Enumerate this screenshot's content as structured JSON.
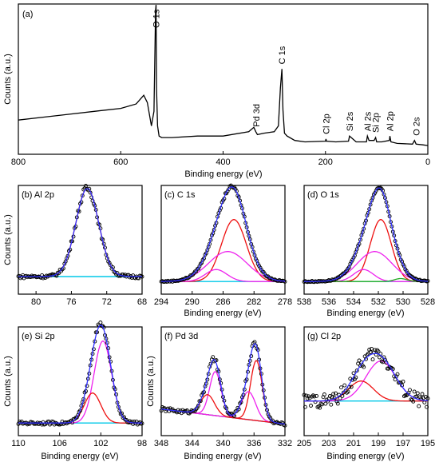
{
  "colors": {
    "data": "#000000",
    "envelope": "#3030ff",
    "baseline": "#00c8e8",
    "red": "#ee1111",
    "magenta": "#ee22ee",
    "green": "#22aa22"
  },
  "chart_data": [
    {
      "panel": "(a)",
      "type": "line",
      "title": "",
      "xlabel": "Binding energy (eV)",
      "ylabel": "Counts (a.u.)",
      "xlim": [
        800,
        0
      ],
      "xticks": [
        800,
        600,
        400,
        200,
        0
      ],
      "ylim": [
        0,
        100
      ],
      "series": [
        {
          "x": [
            800,
            750,
            700,
            650,
            600,
            570,
            555,
            548,
            540,
            535,
            532,
            531,
            530,
            528,
            525,
            520,
            500,
            450,
            400,
            350,
            340,
            336,
            333,
            320,
            300,
            292,
            288,
            285,
            283,
            280,
            275,
            260,
            240,
            200,
            199,
            198,
            180,
            155,
            153,
            140,
            120,
            118,
            115,
            105,
            102,
            100,
            90,
            75,
            74,
            72,
            60,
            30,
            26,
            23,
            10,
            0
          ],
          "y": [
            18,
            20,
            22,
            24,
            26,
            29,
            35,
            30,
            14,
            24,
            93,
            97,
            40,
            14,
            7,
            6,
            6,
            7,
            7,
            10,
            13,
            10,
            8,
            9,
            10,
            14,
            40,
            53,
            25,
            9,
            7,
            4,
            3,
            3.5,
            5,
            3.5,
            3,
            3.5,
            7,
            3,
            3,
            7,
            4,
            4,
            6,
            3,
            3,
            4,
            7,
            3,
            2,
            1.5,
            4,
            1.5,
            1,
            0.5
          ]
        }
      ],
      "annotations": [
        {
          "text": "O 1s",
          "x": 531
        },
        {
          "text": "Pd 3d",
          "x": 335
        },
        {
          "text": "C 1s",
          "x": 285
        },
        {
          "text": "Cl 2p",
          "x": 199
        },
        {
          "text": "Si 2s",
          "x": 153
        },
        {
          "text": "Al 2s",
          "x": 118
        },
        {
          "text": "Si 2p",
          "x": 102
        },
        {
          "text": "Al 2p",
          "x": 74
        },
        {
          "text": "O 2s",
          "x": 23
        }
      ]
    },
    {
      "panel": "(b) Al 2p",
      "type": "scatter",
      "xlabel": "",
      "ylabel": "Counts (a.u.)",
      "xlim": [
        82,
        68
      ],
      "xticks": [
        80,
        76,
        72,
        68
      ],
      "ylim": [
        0,
        100
      ],
      "baseline": 8,
      "peaks": [
        {
          "center": 74.2,
          "height": 88,
          "width": 1.3,
          "color": "red"
        }
      ],
      "noise": 1.5
    },
    {
      "panel": "(c) C 1s",
      "type": "scatter",
      "xlabel": "Binding energy (eV)",
      "ylabel": "",
      "xlim": [
        294,
        278
      ],
      "xticks": [
        294,
        290,
        286,
        282,
        278
      ],
      "ylim": [
        0,
        100
      ],
      "baseline": 3,
      "peaks": [
        {
          "center": 284.6,
          "height": 62,
          "width": 1.6,
          "color": "red"
        },
        {
          "center": 285.4,
          "height": 30,
          "width": 2.5,
          "color": "magenta"
        },
        {
          "center": 286.9,
          "height": 12,
          "width": 1.4,
          "color": "magenta"
        }
      ],
      "noise": 0.6
    },
    {
      "panel": "(d) O 1s",
      "type": "scatter",
      "xlabel": "Binding energy (eV)",
      "ylabel": "",
      "xlim": [
        538,
        528
      ],
      "xticks": [
        538,
        536,
        534,
        532,
        530,
        528
      ],
      "ylim": [
        0,
        100
      ],
      "baseline": 3,
      "peaks": [
        {
          "center": 531.8,
          "height": 62,
          "width": 0.85,
          "color": "red"
        },
        {
          "center": 532.3,
          "height": 30,
          "width": 1.4,
          "color": "magenta"
        },
        {
          "center": 533.2,
          "height": 12,
          "width": 0.8,
          "color": "magenta"
        },
        {
          "center": 530.2,
          "height": 3,
          "width": 0.5,
          "color": "green"
        }
      ],
      "noise": 0.6
    },
    {
      "panel": "(e) Si 2p",
      "type": "scatter",
      "xlabel": "Binding energy (eV)",
      "ylabel": "Counts (a.u.)",
      "xlim": [
        110,
        98
      ],
      "xticks": [
        110,
        106,
        102,
        98
      ],
      "ylim": [
        0,
        100
      ],
      "baseline": 3,
      "peaks": [
        {
          "center": 101.8,
          "height": 82,
          "width": 0.85,
          "color": "magenta"
        },
        {
          "center": 102.8,
          "height": 30,
          "width": 0.8,
          "color": "red"
        }
      ],
      "noise": 1.5
    },
    {
      "panel": "(f) Pd 3d",
      "type": "scatter",
      "xlabel": "Binding energy (eV)",
      "ylabel": "Counts (a.u.)",
      "xlim": [
        348,
        332
      ],
      "xticks": [
        348,
        344,
        340,
        336,
        332
      ],
      "ylim": [
        0,
        100
      ],
      "baseline_line": [
        [
          348,
          17
        ],
        [
          332,
          2
        ]
      ],
      "peaks": [
        {
          "center": 335.7,
          "height": 60,
          "width": 0.75,
          "color": "red"
        },
        {
          "center": 336.7,
          "height": 28,
          "width": 0.9,
          "color": "magenta"
        },
        {
          "center": 341.0,
          "height": 44,
          "width": 0.75,
          "color": "magenta"
        },
        {
          "center": 342.0,
          "height": 20,
          "width": 0.9,
          "color": "red"
        }
      ],
      "noise": 1.5
    },
    {
      "panel": "(g) Cl 2p",
      "type": "scatter",
      "xlabel": "Binding energy (eV)",
      "ylabel": "",
      "xlim": [
        205,
        195
      ],
      "xticks": [
        205,
        203,
        201,
        199,
        197,
        195
      ],
      "ylim": [
        0,
        100
      ],
      "baseline": 25,
      "peaks": [
        {
          "center": 198.8,
          "height": 40,
          "width": 1.2,
          "color": "magenta"
        },
        {
          "center": 200.4,
          "height": 20,
          "width": 1.0,
          "color": "red"
        }
      ],
      "noise": 7
    }
  ]
}
